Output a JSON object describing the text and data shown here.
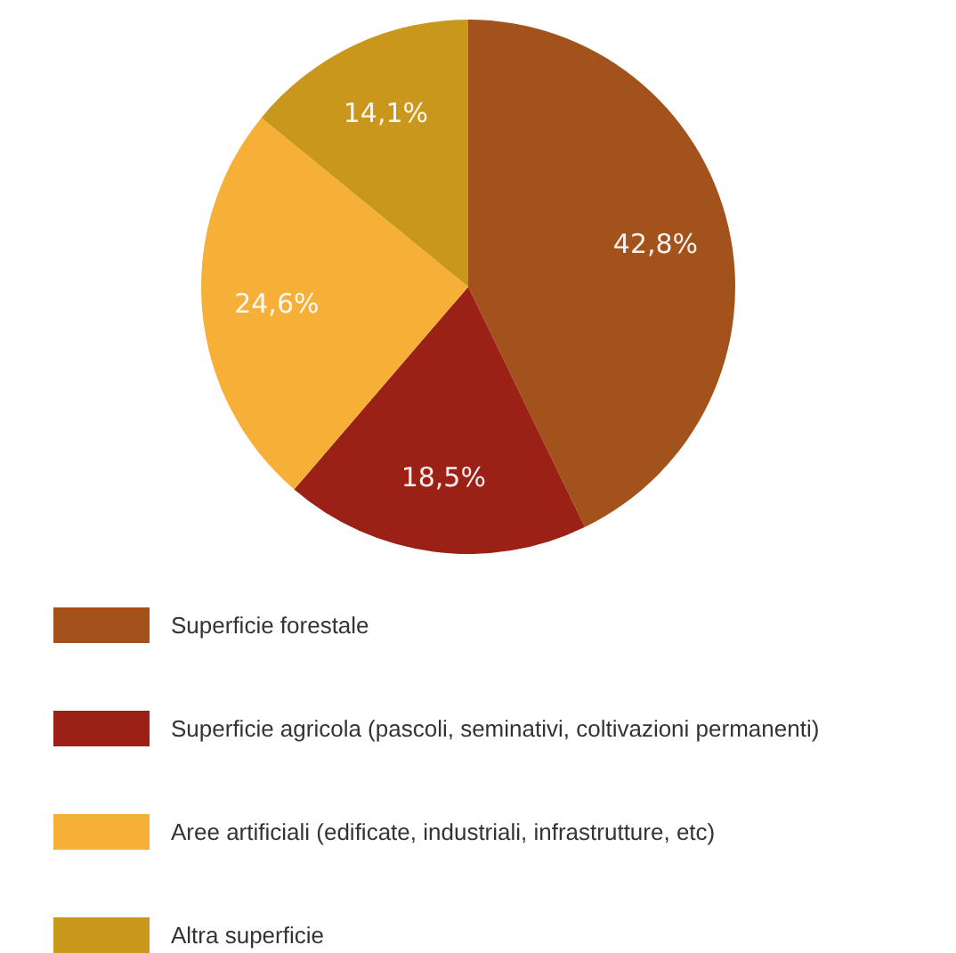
{
  "chart_data": {
    "type": "pie",
    "categories": [
      "Superficie forestale",
      "Superficie agricola (pascoli, seminativi, coltivazioni permanenti)",
      "Aree artificiali (edificate, industriali, infrastrutture, etc)",
      "Altra superficie"
    ],
    "values": [
      42.8,
      18.5,
      24.6,
      14.1
    ],
    "colors": [
      "#a3521c",
      "#9b2116",
      "#f6af37",
      "#c9971b"
    ],
    "value_labels": [
      "42,8%",
      "18,5%",
      "24,6%",
      "14,1%"
    ],
    "legend": "bottom"
  }
}
